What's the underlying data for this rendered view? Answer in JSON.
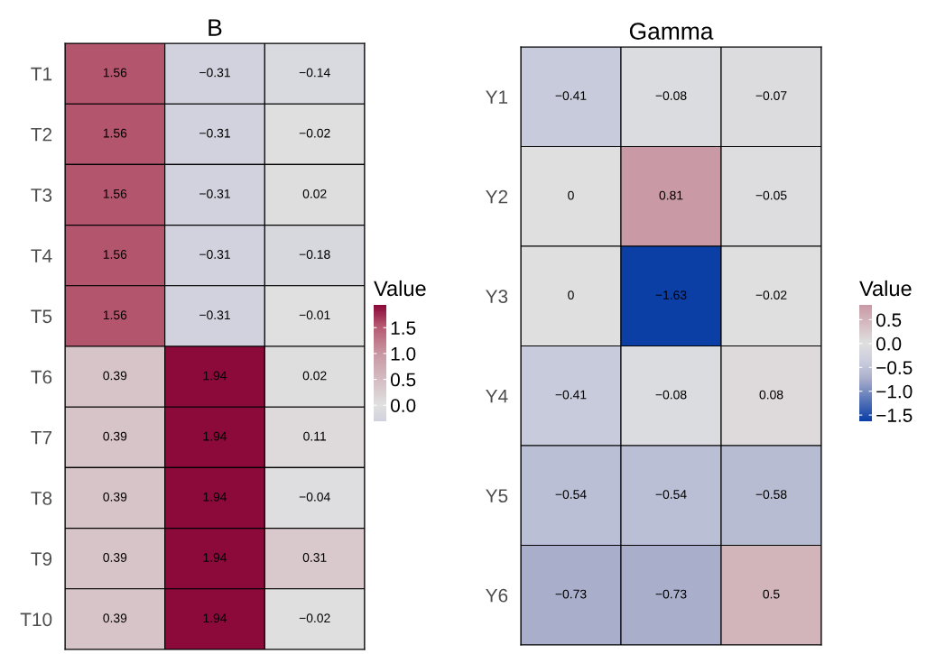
{
  "chart_data": [
    {
      "type": "heatmap",
      "title": "B",
      "clabel": "Value",
      "categories": [
        null,
        null,
        null
      ],
      "y_categories": [
        "T1",
        "T2",
        "T3",
        "T4",
        "T5",
        "T6",
        "T7",
        "T8",
        "T9",
        "T10"
      ],
      "cells": [
        [
          1.56,
          -0.31,
          -0.14
        ],
        [
          1.56,
          -0.31,
          -0.02
        ],
        [
          1.56,
          -0.31,
          0.02
        ],
        [
          1.56,
          -0.31,
          -0.18
        ],
        [
          1.56,
          -0.31,
          -0.01
        ],
        [
          0.39,
          1.94,
          0.02
        ],
        [
          0.39,
          1.94,
          0.11
        ],
        [
          0.39,
          1.94,
          -0.04
        ],
        [
          0.39,
          1.94,
          0.31
        ],
        [
          0.39,
          1.94,
          -0.02
        ]
      ],
      "clim": [
        -0.31,
        1.94
      ],
      "cticks": [
        {
          "value": 0,
          "label": "0.0"
        },
        {
          "value": 0.5,
          "label": "0.5"
        },
        {
          "value": 1,
          "label": "1.0"
        },
        {
          "value": 1.5,
          "label": "1.5"
        }
      ],
      "data_labels": true
    },
    {
      "type": "heatmap",
      "title": "Gamma",
      "clabel": "Value",
      "categories": [
        null,
        null,
        null
      ],
      "y_categories": [
        "Y1",
        "Y2",
        "Y3",
        "Y4",
        "Y5",
        "Y6"
      ],
      "cells": [
        [
          -0.41,
          -0.08,
          -0.07
        ],
        [
          0,
          0.81,
          -0.05
        ],
        [
          0,
          -1.63,
          -0.02
        ],
        [
          -0.41,
          -0.08,
          0.08
        ],
        [
          -0.54,
          -0.54,
          -0.58
        ],
        [
          -0.73,
          -0.73,
          0.5
        ]
      ],
      "clim": [
        -1.63,
        0.81
      ],
      "cticks": [
        {
          "value": -1.5,
          "label": "−1.5"
        },
        {
          "value": -1,
          "label": "−1.0"
        },
        {
          "value": -0.5,
          "label": "−0.5"
        },
        {
          "value": 0,
          "label": "0.0"
        },
        {
          "value": 0.5,
          "label": "0.5"
        }
      ],
      "data_labels": true
    }
  ]
}
